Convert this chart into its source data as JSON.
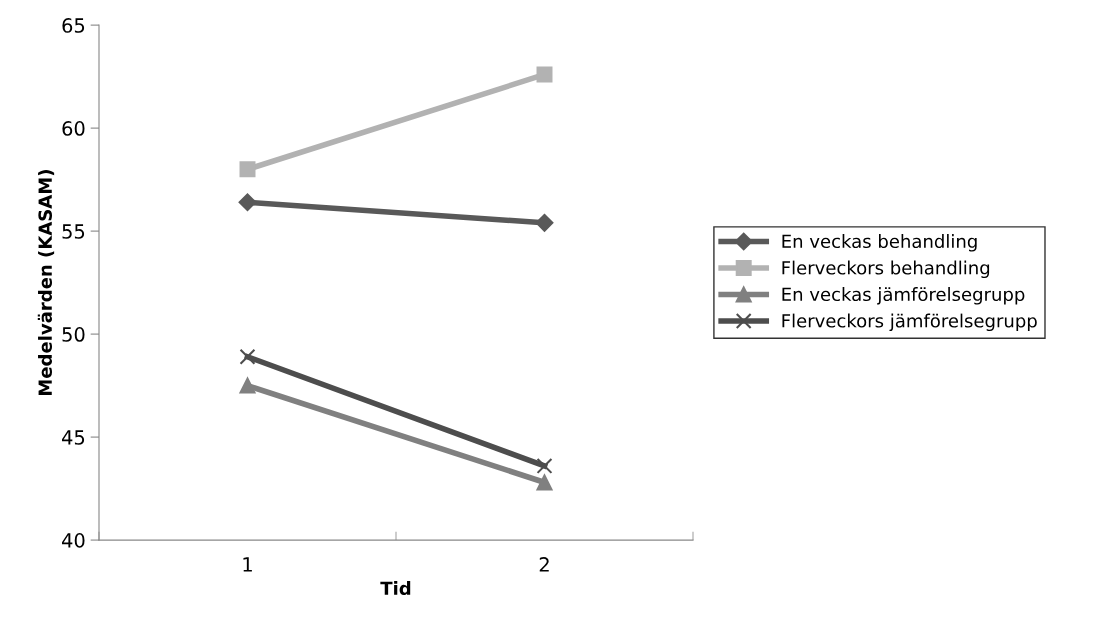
{
  "chart_data": {
    "type": "line",
    "xlabel": "Tid",
    "ylabel": "Medelvärden (KASAM)",
    "categories": [
      "1",
      "2"
    ],
    "series": [
      {
        "name": "En veckas behandling",
        "color": "#595959",
        "marker": "diamond",
        "values": [
          56.4,
          55.4
        ]
      },
      {
        "name": "Flerveckors behandling",
        "color": "#b2b2b2",
        "marker": "square",
        "values": [
          58.0,
          62.6
        ]
      },
      {
        "name": "En veckas jämförelsegrupp",
        "color": "#808080",
        "marker": "triangle",
        "values": [
          47.5,
          42.8
        ]
      },
      {
        "name": "Flerveckors jämförelsegrupp",
        "color": "#4d4d4d",
        "marker": "cross",
        "values": [
          48.9,
          43.6
        ]
      }
    ],
    "ylim": [
      40,
      65
    ],
    "yticks": [
      40,
      45,
      50,
      55,
      60,
      65
    ],
    "grid": false,
    "legend": "right"
  }
}
